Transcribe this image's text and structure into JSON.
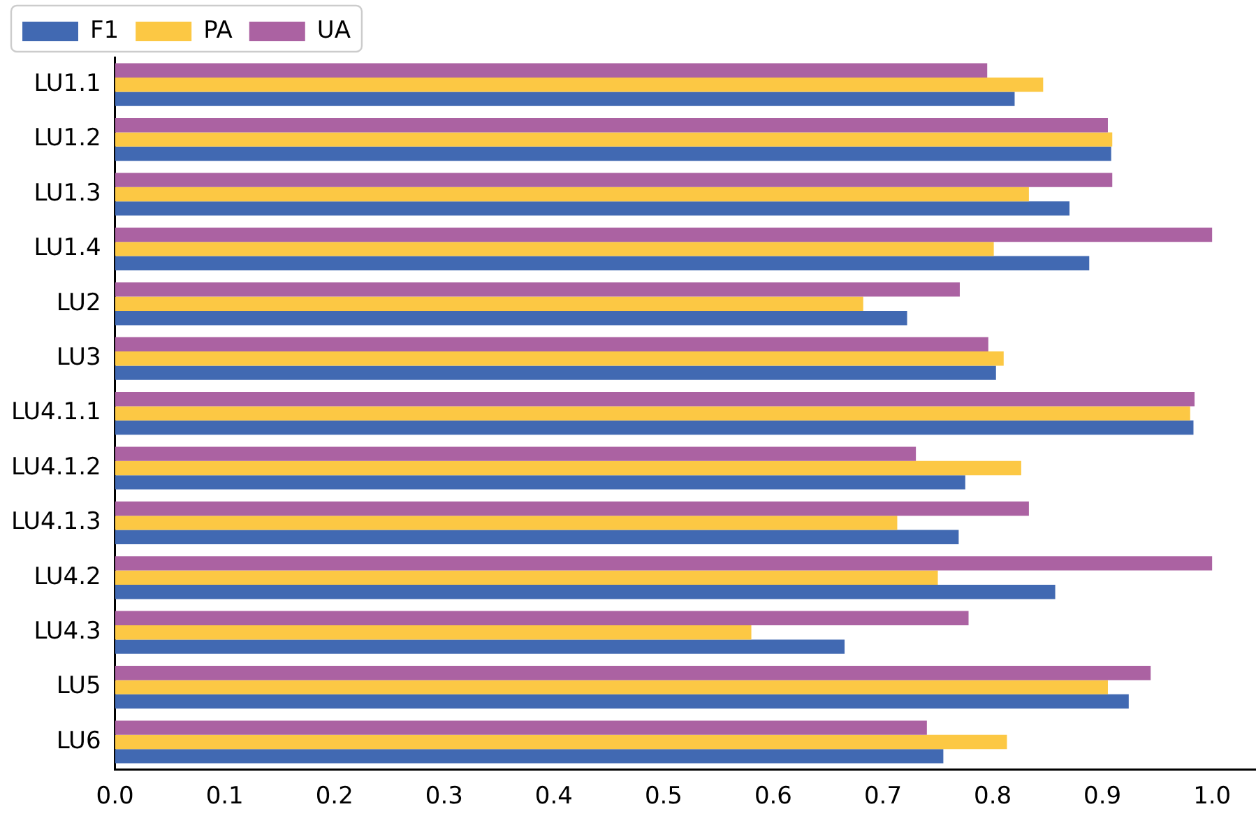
{
  "chart_data": {
    "type": "bar",
    "orientation": "horizontal",
    "categories": [
      "LU1.1",
      "LU1.2",
      "LU1.3",
      "LU1.4",
      "LU2",
      "LU3",
      "LU4.1.1",
      "LU4.1.2",
      "LU4.1.3",
      "LU4.2",
      "LU4.3",
      "LU5",
      "LU6"
    ],
    "series": [
      {
        "name": "F1",
        "color": "#4169b2",
        "values": [
          0.82,
          0.908,
          0.87,
          0.888,
          0.722,
          0.803,
          0.983,
          0.775,
          0.769,
          0.857,
          0.665,
          0.924,
          0.755
        ]
      },
      {
        "name": "PA",
        "color": "#fcc844",
        "values": [
          0.846,
          0.909,
          0.833,
          0.801,
          0.682,
          0.81,
          0.98,
          0.826,
          0.713,
          0.75,
          0.58,
          0.905,
          0.813
        ]
      },
      {
        "name": "UA",
        "color": "#ab62a2",
        "values": [
          0.795,
          0.905,
          0.909,
          1.0,
          0.77,
          0.796,
          0.984,
          0.73,
          0.833,
          1.0,
          0.778,
          0.944,
          0.74
        ]
      }
    ],
    "xlim": [
      0,
      1.04
    ],
    "xticks": [
      {
        "value": 0,
        "label": "0.0"
      },
      0.1,
      0.2,
      0.3,
      0.4,
      0.5,
      0.6,
      0.7,
      0.8,
      0.9,
      {
        "value": 1,
        "label": "1.0"
      }
    ],
    "grid": false,
    "legend": "top left"
  }
}
